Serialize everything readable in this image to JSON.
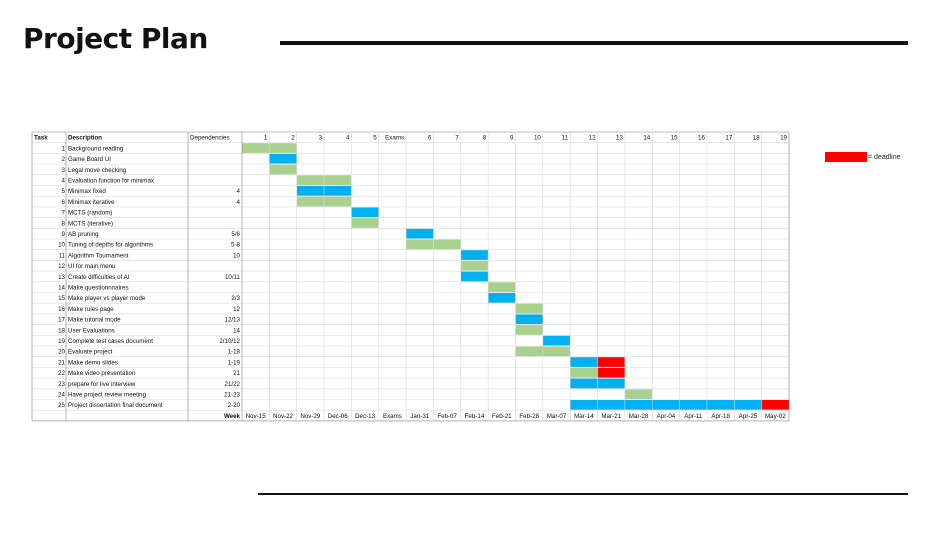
{
  "page": {
    "title": "Project Plan"
  },
  "legend": {
    "label": "= deadline"
  },
  "colors": {
    "blue": "#00b0f0",
    "green": "#a9d08e",
    "red": "#ff0000",
    "grid": "#d9d9d9",
    "border": "#808080"
  },
  "chart_data": {
    "type": "table",
    "headers": {
      "task": "Task",
      "description": "Description",
      "dependencies": "Dependencies",
      "week_label": "Week"
    },
    "columns": [
      "1",
      "2",
      "3",
      "4",
      "5",
      "Exams",
      "6",
      "7",
      "8",
      "9",
      "10",
      "11",
      "12",
      "13",
      "14",
      "15",
      "16",
      "17",
      "18",
      "19"
    ],
    "weeks": [
      "Nov-15",
      "Nov-22",
      "Nov-29",
      "Dec-06",
      "Dec-13",
      "Exams",
      "Jan-31",
      "Feb-07",
      "Feb-14",
      "Feb-21",
      "Feb-28",
      "Mar-07",
      "Mar-14",
      "Mar-21",
      "Mar-28",
      "Apr-04",
      "Apr-11",
      "Apr-18",
      "Apr-25",
      "May-02"
    ],
    "tasks": [
      {
        "id": "1",
        "description": "Background reading",
        "dependencies": "",
        "bars": [
          {
            "start": "1",
            "end": "2",
            "color": "green"
          }
        ]
      },
      {
        "id": "2",
        "description": "Game Board UI",
        "dependencies": "",
        "bars": [
          {
            "start": "2",
            "end": "2",
            "color": "blue"
          }
        ]
      },
      {
        "id": "3",
        "description": "Legal move checking",
        "dependencies": "",
        "bars": [
          {
            "start": "2",
            "end": "2",
            "color": "green"
          }
        ]
      },
      {
        "id": "4",
        "description": "Evaluation function for minimax",
        "dependencies": "",
        "bars": [
          {
            "start": "3",
            "end": "4",
            "color": "green"
          }
        ]
      },
      {
        "id": "5",
        "description": "Minimax fixed",
        "dependencies": "4",
        "bars": [
          {
            "start": "3",
            "end": "4",
            "color": "blue"
          }
        ]
      },
      {
        "id": "6",
        "description": "Minimax iterative",
        "dependencies": "4",
        "bars": [
          {
            "start": "3",
            "end": "4",
            "color": "green"
          }
        ]
      },
      {
        "id": "7",
        "description": "MCTS (random)",
        "dependencies": "",
        "bars": [
          {
            "start": "5",
            "end": "5",
            "color": "blue"
          }
        ]
      },
      {
        "id": "8",
        "description": "MCTS (iterative)",
        "dependencies": "",
        "bars": [
          {
            "start": "5",
            "end": "5",
            "color": "green"
          }
        ]
      },
      {
        "id": "9",
        "description": "AB pruning",
        "dependencies": "5/6",
        "bars": [
          {
            "start": "6",
            "end": "6",
            "color": "blue"
          }
        ]
      },
      {
        "id": "10",
        "description": "Tuning of depths for algorithms",
        "dependencies": "5-8",
        "bars": [
          {
            "start": "6",
            "end": "7",
            "color": "green"
          }
        ]
      },
      {
        "id": "11",
        "description": "Algorithm Tournament",
        "dependencies": "10",
        "bars": [
          {
            "start": "8",
            "end": "8",
            "color": "blue"
          }
        ]
      },
      {
        "id": "12",
        "description": "UI for main menu",
        "dependencies": "",
        "bars": [
          {
            "start": "8",
            "end": "8",
            "color": "green"
          }
        ]
      },
      {
        "id": "13",
        "description": "Create difficulties of AI",
        "dependencies": "10/11",
        "bars": [
          {
            "start": "8",
            "end": "8",
            "color": "blue"
          }
        ]
      },
      {
        "id": "14",
        "description": "Make questionnnaires",
        "dependencies": "",
        "bars": [
          {
            "start": "9",
            "end": "9",
            "color": "green"
          }
        ]
      },
      {
        "id": "15",
        "description": "Make player vs player mode",
        "dependencies": "2/3",
        "bars": [
          {
            "start": "9",
            "end": "9",
            "color": "blue"
          }
        ]
      },
      {
        "id": "16",
        "description": "Make rules page",
        "dependencies": "12",
        "bars": [
          {
            "start": "10",
            "end": "10",
            "color": "green"
          }
        ]
      },
      {
        "id": "17",
        "description": "Make tutorial mode",
        "dependencies": "12/13",
        "bars": [
          {
            "start": "10",
            "end": "10",
            "color": "blue"
          }
        ]
      },
      {
        "id": "18",
        "description": "User Evaluations",
        "dependencies": "14",
        "bars": [
          {
            "start": "10",
            "end": "10",
            "color": "green"
          }
        ]
      },
      {
        "id": "19",
        "description": "Complete test cases document",
        "dependencies": "2/10/12",
        "bars": [
          {
            "start": "11",
            "end": "11",
            "color": "blue"
          }
        ]
      },
      {
        "id": "20",
        "description": "Evaluate project",
        "dependencies": "1-18",
        "bars": [
          {
            "start": "10",
            "end": "11",
            "color": "green"
          }
        ]
      },
      {
        "id": "21",
        "description": "Make demo slides",
        "dependencies": "1-19",
        "bars": [
          {
            "start": "12",
            "end": "12",
            "color": "blue"
          },
          {
            "start": "13",
            "end": "13",
            "color": "red"
          }
        ]
      },
      {
        "id": "22",
        "description": "Make video presentation",
        "dependencies": "21",
        "bars": [
          {
            "start": "12",
            "end": "12",
            "color": "green"
          },
          {
            "start": "13",
            "end": "13",
            "color": "red"
          }
        ]
      },
      {
        "id": "23",
        "description": "prepare for live interview",
        "dependencies": "21/22",
        "bars": [
          {
            "start": "12",
            "end": "13",
            "color": "blue"
          }
        ]
      },
      {
        "id": "24",
        "description": "Have project review meeting",
        "dependencies": "21-23",
        "bars": [
          {
            "start": "14",
            "end": "14",
            "color": "green"
          }
        ]
      },
      {
        "id": "25",
        "description": "Project dissertation final document",
        "dependencies": "2-20",
        "bars": [
          {
            "start": "12",
            "end": "18",
            "color": "blue"
          },
          {
            "start": "19",
            "end": "19",
            "color": "red"
          }
        ]
      }
    ]
  }
}
